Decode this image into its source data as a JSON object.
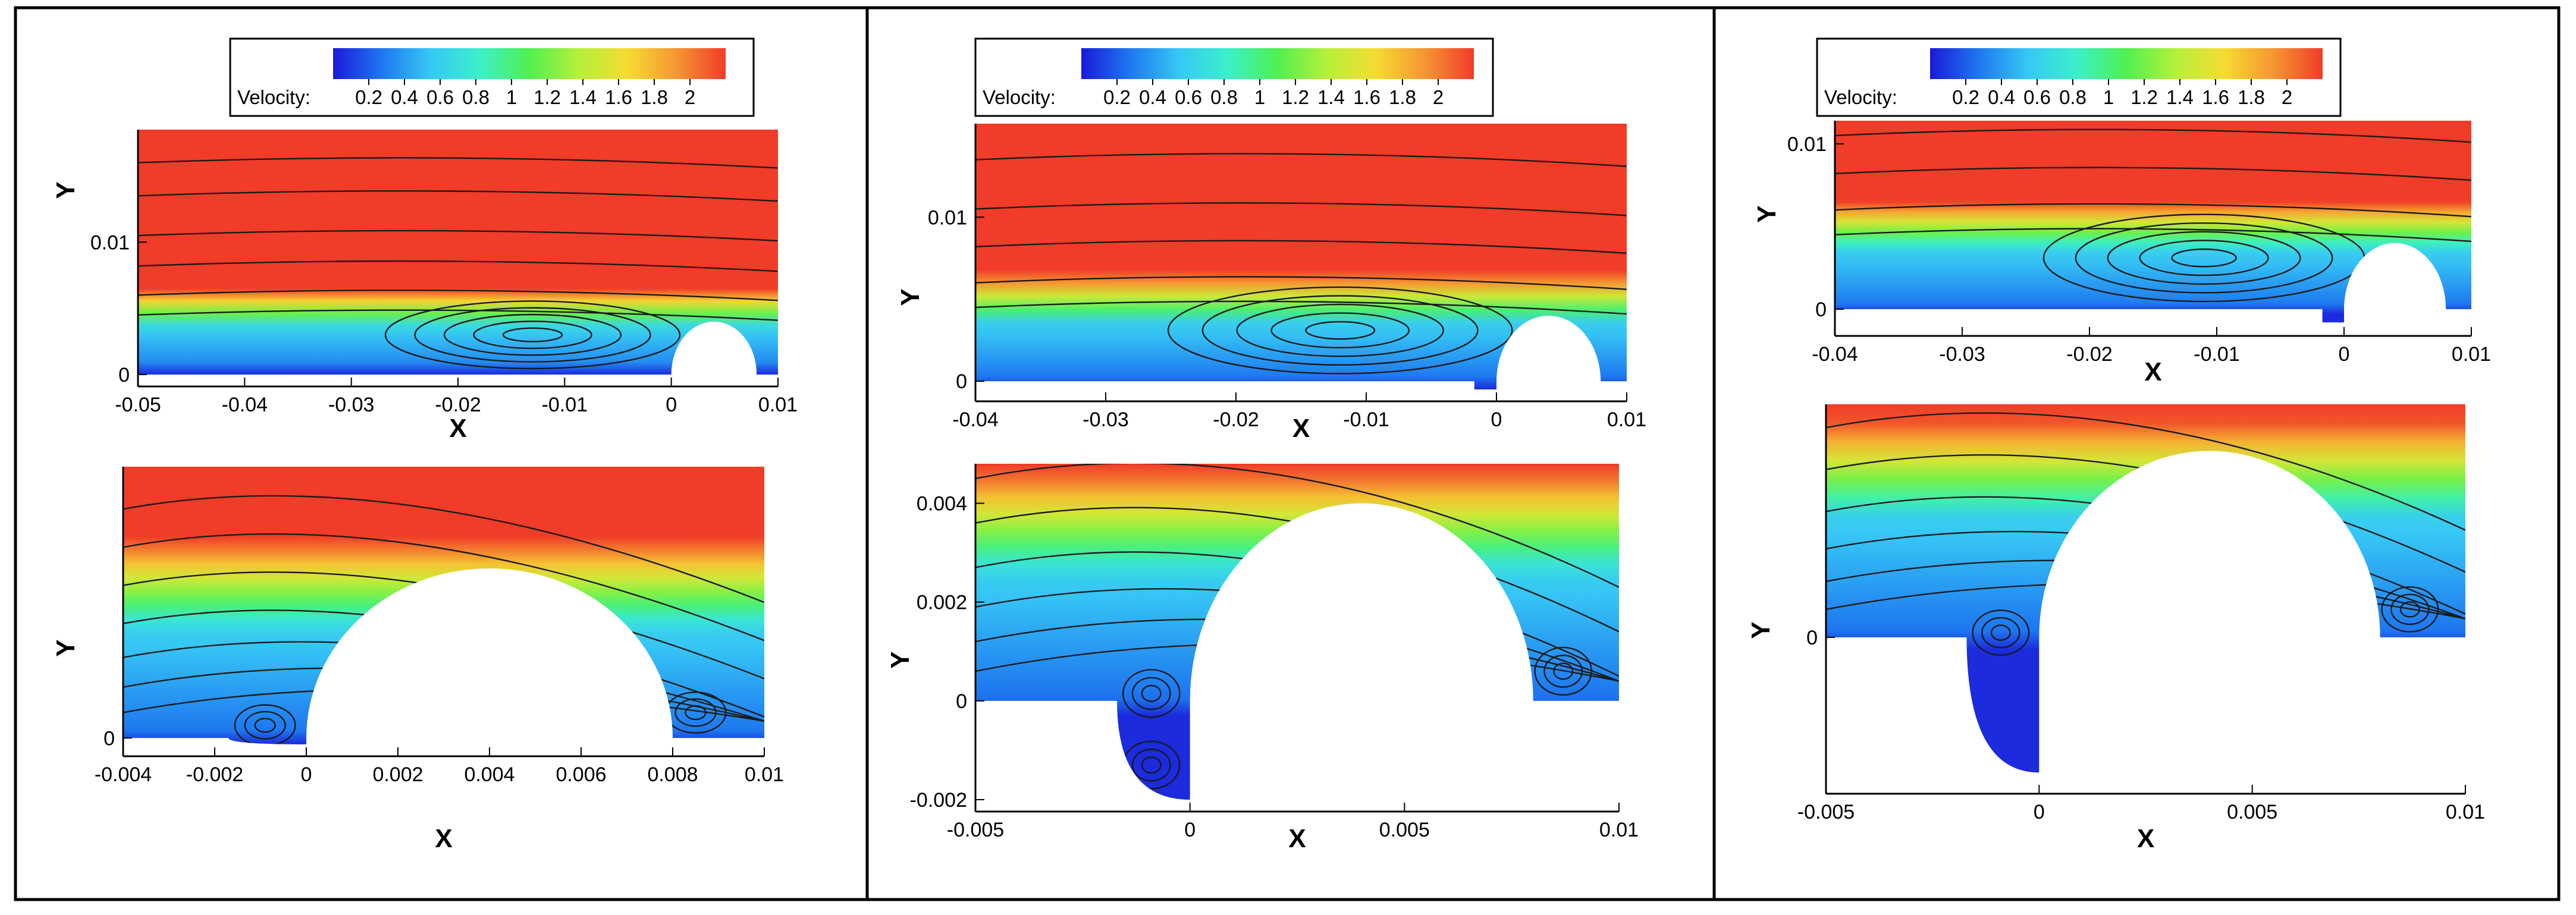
{
  "colorbar": {
    "label": "Velocity:",
    "ticks": [
      "0.2",
      "0.4",
      "0.6",
      "0.8",
      "1",
      "1.2",
      "1.4",
      "1.6",
      "1.8",
      "2"
    ],
    "range": [
      0,
      2.2
    ],
    "colormap": [
      "#1a1ad9",
      "#1e78f0",
      "#37c8f5",
      "#3cf0c8",
      "#50f050",
      "#b4f03c",
      "#f5dc32",
      "#f59632",
      "#f03c28"
    ]
  },
  "chart_data": [
    {
      "type": "heatmap",
      "panel": "left",
      "view": "overview",
      "xlabel": "X",
      "ylabel": "Y",
      "xticks": [
        "-0.05",
        "-0.04",
        "-0.03",
        "-0.02",
        "-0.01",
        "0",
        "0.01"
      ],
      "xtick_values": [
        -0.05,
        -0.04,
        -0.03,
        -0.02,
        -0.01,
        0,
        0.01
      ],
      "yticks": [
        "0",
        "0.01"
      ],
      "ytick_values": [
        0,
        0.01
      ],
      "xlim": [
        -0.05,
        0.01
      ],
      "ylim": [
        0,
        0.0185
      ],
      "vortex_center": [
        -0.013,
        0.003
      ],
      "free_stream_velocity": 2.2
    },
    {
      "type": "heatmap",
      "panel": "left",
      "view": "zoom",
      "xlabel": "X",
      "ylabel": "Y",
      "xticks": [
        "-0.004",
        "-0.002",
        "0",
        "0.002",
        "0.004",
        "0.006",
        "0.008",
        "0.01"
      ],
      "xtick_values": [
        -0.004,
        -0.002,
        0,
        0.002,
        0.004,
        0.006,
        0.008,
        0.01
      ],
      "yticks": [
        "0"
      ],
      "ytick_values": [
        0
      ],
      "xlim": [
        -0.004,
        0.01
      ],
      "ylim": [
        -0.00015,
        0.0064
      ],
      "corner_vortices": [
        [
          -0.0009,
          0.0003
        ],
        [
          0.0085,
          0.0006
        ]
      ]
    },
    {
      "type": "heatmap",
      "panel": "middle",
      "view": "overview",
      "xlabel": "X",
      "ylabel": "Y",
      "xticks": [
        "-0.04",
        "-0.03",
        "-0.02",
        "-0.01",
        "0",
        "0.01"
      ],
      "xtick_values": [
        -0.04,
        -0.03,
        -0.02,
        -0.01,
        0,
        0.01
      ],
      "yticks": [
        "0",
        "0.01"
      ],
      "ytick_values": [
        0,
        0.01
      ],
      "xlim": [
        -0.04,
        0.01
      ],
      "ylim": [
        -0.0005,
        0.0157
      ],
      "vortex_center": [
        -0.012,
        0.0031
      ],
      "free_stream_velocity": 2.2
    },
    {
      "type": "heatmap",
      "panel": "middle",
      "view": "zoom",
      "xlabel": "X",
      "ylabel": "Y",
      "xticks": [
        "-0.005",
        "0",
        "0.005",
        "0.01"
      ],
      "xtick_values": [
        -0.005,
        0,
        0.005,
        0.01
      ],
      "yticks": [
        "-0.002",
        "0",
        "0.002",
        "0.004"
      ],
      "ytick_values": [
        -0.002,
        0,
        0.002,
        0.004
      ],
      "xlim": [
        -0.005,
        0.01
      ],
      "ylim": [
        -0.002,
        0.0048
      ],
      "corner_vortices": [
        [
          -0.0009,
          0.00015
        ],
        [
          -0.0009,
          -0.0013
        ],
        [
          0.0087,
          0.0006
        ]
      ]
    },
    {
      "type": "heatmap",
      "panel": "right",
      "view": "overview",
      "xlabel": "X",
      "ylabel": "Y",
      "xticks": [
        "-0.04",
        "-0.03",
        "-0.02",
        "-0.01",
        "0",
        "0.01"
      ],
      "xtick_values": [
        -0.04,
        -0.03,
        -0.02,
        -0.01,
        0,
        0.01
      ],
      "yticks": [
        "0",
        "0.01"
      ],
      "ytick_values": [
        0,
        0.01
      ],
      "xlim": [
        -0.04,
        0.01
      ],
      "ylim": [
        -0.0009,
        0.0114
      ],
      "vortex_center": [
        -0.011,
        0.0031
      ],
      "free_stream_velocity": 2.2
    },
    {
      "type": "heatmap",
      "panel": "right",
      "view": "zoom",
      "xlabel": "X",
      "ylabel": "Y",
      "xticks": [
        "-0.005",
        "0",
        "0.005",
        "0.01"
      ],
      "xtick_values": [
        -0.005,
        0,
        0.005,
        0.01
      ],
      "yticks": [
        "0"
      ],
      "ytick_values": [
        0
      ],
      "xlim": [
        -0.005,
        0.01
      ],
      "ylim": [
        -0.0031,
        0.005
      ],
      "corner_vortices": [
        [
          -0.0009,
          0.0001
        ],
        [
          0.0087,
          0.0006
        ]
      ]
    }
  ]
}
